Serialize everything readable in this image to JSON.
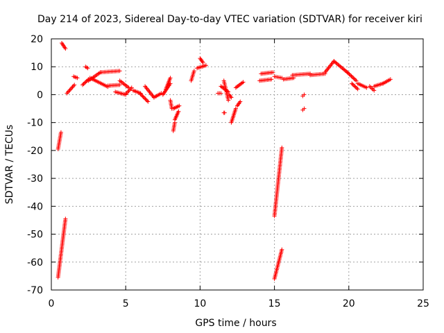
{
  "chart_data": {
    "type": "scatter",
    "title": "Day 214 of 2023, Sidereal Day-to-day VTEC variation (SDTVAR) for receiver kiri",
    "xlabel": "GPS time / hours",
    "ylabel": "SDTVAR / TECUs",
    "xlim": [
      0,
      25
    ],
    "ylim": [
      -70,
      20
    ],
    "xticks": [
      0,
      5,
      10,
      15,
      20,
      25
    ],
    "yticks": [
      -70,
      -60,
      -50,
      -40,
      -30,
      -20,
      -10,
      0,
      10,
      20
    ],
    "grid": true,
    "marker": "+",
    "marker_color": "#ff0000",
    "series": [
      {
        "name": "SDTVAR",
        "segments": [
          {
            "from": [
              0.7,
              18.5
            ],
            "to": [
              0.95,
              16.5
            ]
          },
          {
            "from": [
              0.45,
              -19.5
            ],
            "to": [
              0.65,
              -13.5
            ]
          },
          {
            "from": [
              0.45,
              -65.5
            ],
            "to": [
              0.95,
              -44.5
            ]
          },
          {
            "from": [
              1.05,
              0.5
            ],
            "to": [
              1.55,
              3.5
            ]
          },
          {
            "from": [
              1.5,
              6.5
            ],
            "to": [
              1.75,
              6
            ]
          },
          {
            "from": [
              2.1,
              3.5
            ],
            "to": [
              2.5,
              5.5
            ]
          },
          {
            "from": [
              2.3,
              10
            ],
            "to": [
              2.45,
              9.5
            ]
          },
          {
            "from": [
              2.5,
              5
            ],
            "to": [
              3.3,
              8
            ]
          },
          {
            "from": [
              2.6,
              6
            ],
            "to": [
              3.8,
              2.8
            ]
          },
          {
            "from": [
              3.3,
              8
            ],
            "to": [
              4.6,
              8.5
            ]
          },
          {
            "from": [
              3.8,
              3.2
            ],
            "to": [
              4.6,
              3.5
            ]
          },
          {
            "from": [
              4.3,
              1
            ],
            "to": [
              5.0,
              0
            ]
          },
          {
            "from": [
              4.6,
              5
            ],
            "to": [
              5.2,
              2.5
            ]
          },
          {
            "from": [
              5.0,
              0.2
            ],
            "to": [
              5.4,
              2.5
            ]
          },
          {
            "from": [
              5.5,
              1.5
            ],
            "to": [
              6.0,
              0.5
            ]
          },
          {
            "from": [
              6.0,
              0.2
            ],
            "to": [
              6.5,
              -2.5
            ]
          },
          {
            "from": [
              6.3,
              3
            ],
            "to": [
              6.9,
              -1
            ]
          },
          {
            "from": [
              6.9,
              -1
            ],
            "to": [
              7.4,
              0.5
            ]
          },
          {
            "from": [
              7.5,
              0
            ],
            "to": [
              8.0,
              4
            ]
          },
          {
            "from": [
              7.7,
              2
            ],
            "to": [
              8.0,
              6
            ]
          },
          {
            "from": [
              8.0,
              -2
            ],
            "to": [
              8.1,
              -5
            ]
          },
          {
            "from": [
              8.2,
              -5
            ],
            "to": [
              8.6,
              -4
            ]
          },
          {
            "from": [
              8.3,
              -9
            ],
            "to": [
              8.55,
              -6
            ]
          },
          {
            "from": [
              8.2,
              -13
            ],
            "to": [
              8.3,
              -10
            ]
          },
          {
            "from": [
              9.4,
              5
            ],
            "to": [
              9.6,
              8.5
            ]
          },
          {
            "from": [
              9.8,
              9.5
            ],
            "to": [
              10.4,
              10.5
            ]
          },
          {
            "from": [
              10.0,
              13
            ],
            "to": [
              10.2,
              11.5
            ]
          },
          {
            "from": [
              11.2,
              0.5
            ],
            "to": [
              11.4,
              0.5
            ]
          },
          {
            "from": [
              11.4,
              3
            ],
            "to": [
              11.9,
              1
            ]
          },
          {
            "from": [
              11.6,
              5
            ],
            "to": [
              11.9,
              -2
            ]
          },
          {
            "from": [
              11.6,
              -6.5
            ],
            "to": [
              11.65,
              -6.5
            ]
          },
          {
            "from": [
              11.95,
              0
            ],
            "to": [
              12.1,
              -1
            ]
          },
          {
            "from": [
              12.1,
              -10
            ],
            "to": [
              12.4,
              -5
            ]
          },
          {
            "from": [
              12.5,
              -4
            ],
            "to": [
              12.7,
              -2.5
            ]
          },
          {
            "from": [
              12.4,
              2.5
            ],
            "to": [
              12.9,
              4.5
            ]
          },
          {
            "from": [
              14.0,
              5
            ],
            "to": [
              14.8,
              5.5
            ]
          },
          {
            "from": [
              14.1,
              7.5
            ],
            "to": [
              14.9,
              8
            ]
          },
          {
            "from": [
              15.0,
              6.5
            ],
            "to": [
              15.5,
              6
            ]
          },
          {
            "from": [
              15.0,
              -43.5
            ],
            "to": [
              15.5,
              -19
            ]
          },
          {
            "from": [
              15.0,
              -66
            ],
            "to": [
              15.5,
              -55.5
            ]
          },
          {
            "from": [
              15.6,
              5.5
            ],
            "to": [
              16.3,
              6
            ]
          },
          {
            "from": [
              16.2,
              7
            ],
            "to": [
              17.4,
              7.5
            ]
          },
          {
            "from": [
              16.9,
              -0.5
            ],
            "to": [
              17.0,
              0
            ]
          },
          {
            "from": [
              16.9,
              -5.5
            ],
            "to": [
              17.0,
              -5
            ]
          },
          {
            "from": [
              17.4,
              7
            ],
            "to": [
              18.4,
              7.5
            ]
          },
          {
            "from": [
              18.4,
              8
            ],
            "to": [
              19.0,
              12
            ]
          },
          {
            "from": [
              19.0,
              12
            ],
            "to": [
              19.9,
              8
            ]
          },
          {
            "from": [
              19.9,
              8
            ],
            "to": [
              20.5,
              5
            ]
          },
          {
            "from": [
              20.2,
              4
            ],
            "to": [
              20.6,
              2
            ]
          },
          {
            "from": [
              20.6,
              4
            ],
            "to": [
              21.2,
              2.5
            ]
          },
          {
            "from": [
              21.4,
              3
            ],
            "to": [
              21.7,
              1.5
            ]
          },
          {
            "from": [
              21.7,
              3
            ],
            "to": [
              22.3,
              4
            ]
          },
          {
            "from": [
              22.3,
              4
            ],
            "to": [
              22.8,
              5.5
            ]
          }
        ]
      }
    ]
  }
}
